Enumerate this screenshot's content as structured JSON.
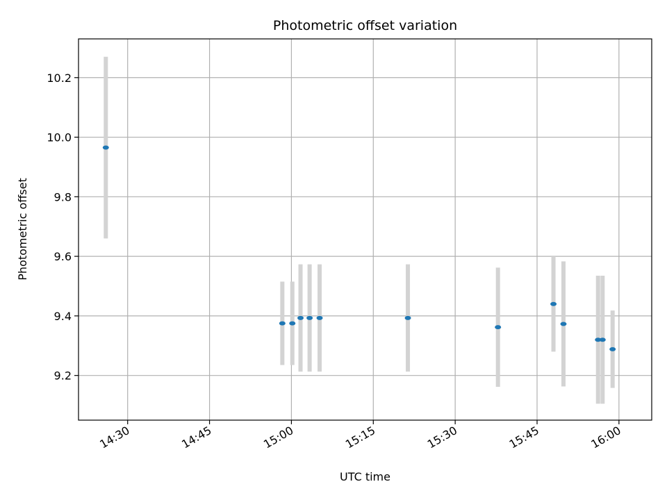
{
  "chart_data": {
    "type": "scatter",
    "title": "Photometric offset variation",
    "xlabel": "UTC time",
    "ylabel": "Photometric offset",
    "xlim": [
      "14:21:00",
      "16:06:00"
    ],
    "ylim": [
      9.05,
      10.33
    ],
    "x_ticks": [
      "14:30",
      "14:45",
      "15:00",
      "15:15",
      "15:30",
      "15:45",
      "16:00"
    ],
    "y_ticks": [
      9.2,
      9.4,
      9.6,
      9.8,
      10.0,
      10.2
    ],
    "grid": true,
    "colors": {
      "point": "#1f77b4",
      "errorbar": "#d3d3d3",
      "grid": "#b0b0b0"
    },
    "series": [
      {
        "points": [
          {
            "t": "14:26:00",
            "y": 9.965,
            "err": 0.305
          },
          {
            "t": "14:58:20",
            "y": 9.375,
            "err": 0.14
          },
          {
            "t": "15:00:10",
            "y": 9.375,
            "err": 0.14
          },
          {
            "t": "15:01:40",
            "y": 9.393,
            "err": 0.18
          },
          {
            "t": "15:03:20",
            "y": 9.393,
            "err": 0.18
          },
          {
            "t": "15:05:10",
            "y": 9.393,
            "err": 0.18
          },
          {
            "t": "15:21:20",
            "y": 9.393,
            "err": 0.18
          },
          {
            "t": "15:37:50",
            "y": 9.362,
            "err": 0.2
          },
          {
            "t": "15:48:00",
            "y": 9.44,
            "err": 0.16
          },
          {
            "t": "15:49:50",
            "y": 9.373,
            "err": 0.21
          },
          {
            "t": "15:56:10",
            "y": 9.32,
            "err": 0.215
          },
          {
            "t": "15:57:00",
            "y": 9.32,
            "err": 0.215
          },
          {
            "t": "15:58:50",
            "y": 9.288,
            "err": 0.13
          }
        ]
      }
    ]
  }
}
